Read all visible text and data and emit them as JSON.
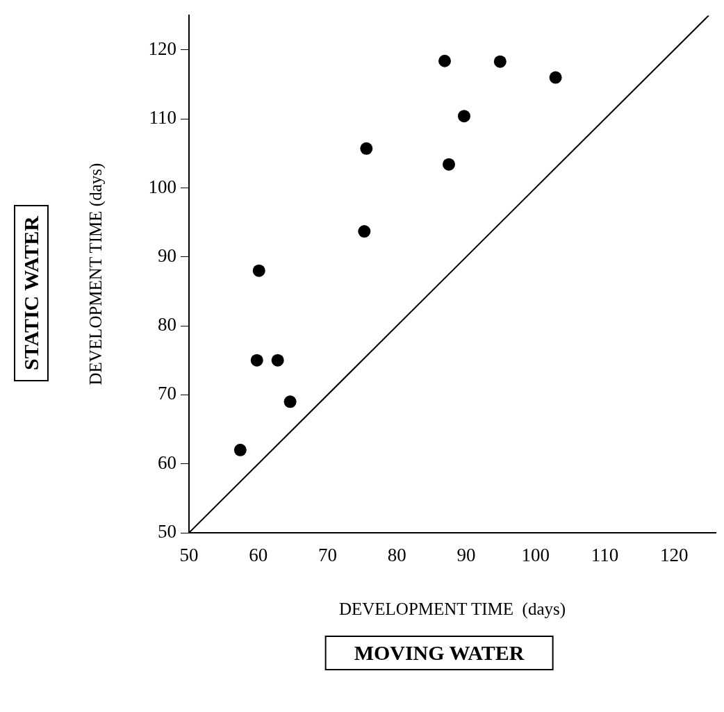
{
  "chart_data": {
    "type": "scatter",
    "xlabel": "DEVELOPMENT TIME  (days)",
    "ylabel": "DEVELOPMENT TIME (days)",
    "annotations": [
      "STATIC WATER",
      "MOVING WATER"
    ],
    "xlim": [
      50,
      126
    ],
    "ylim": [
      50,
      125
    ],
    "xticks": [
      50,
      60,
      70,
      80,
      90,
      100,
      110,
      120
    ],
    "yticks": [
      50,
      60,
      70,
      80,
      90,
      100,
      110,
      120
    ],
    "grid": false,
    "legend": false,
    "series": [
      {
        "type": "scatter",
        "marker": "circle",
        "color": "#000000",
        "x": [
          57.4,
          59.8,
          62.8,
          64.6,
          60.1,
          75.3,
          75.6,
          87.5,
          89.7,
          86.9,
          94.9,
          102.9
        ],
        "values": [
          62,
          75,
          75,
          69,
          88,
          93.7,
          105.7,
          103.4,
          110.4,
          118.4,
          118.3,
          116
        ]
      },
      {
        "type": "line",
        "marker": "none",
        "color": "#000000",
        "x": [
          50,
          125
        ],
        "values": [
          50,
          125
        ]
      }
    ]
  }
}
